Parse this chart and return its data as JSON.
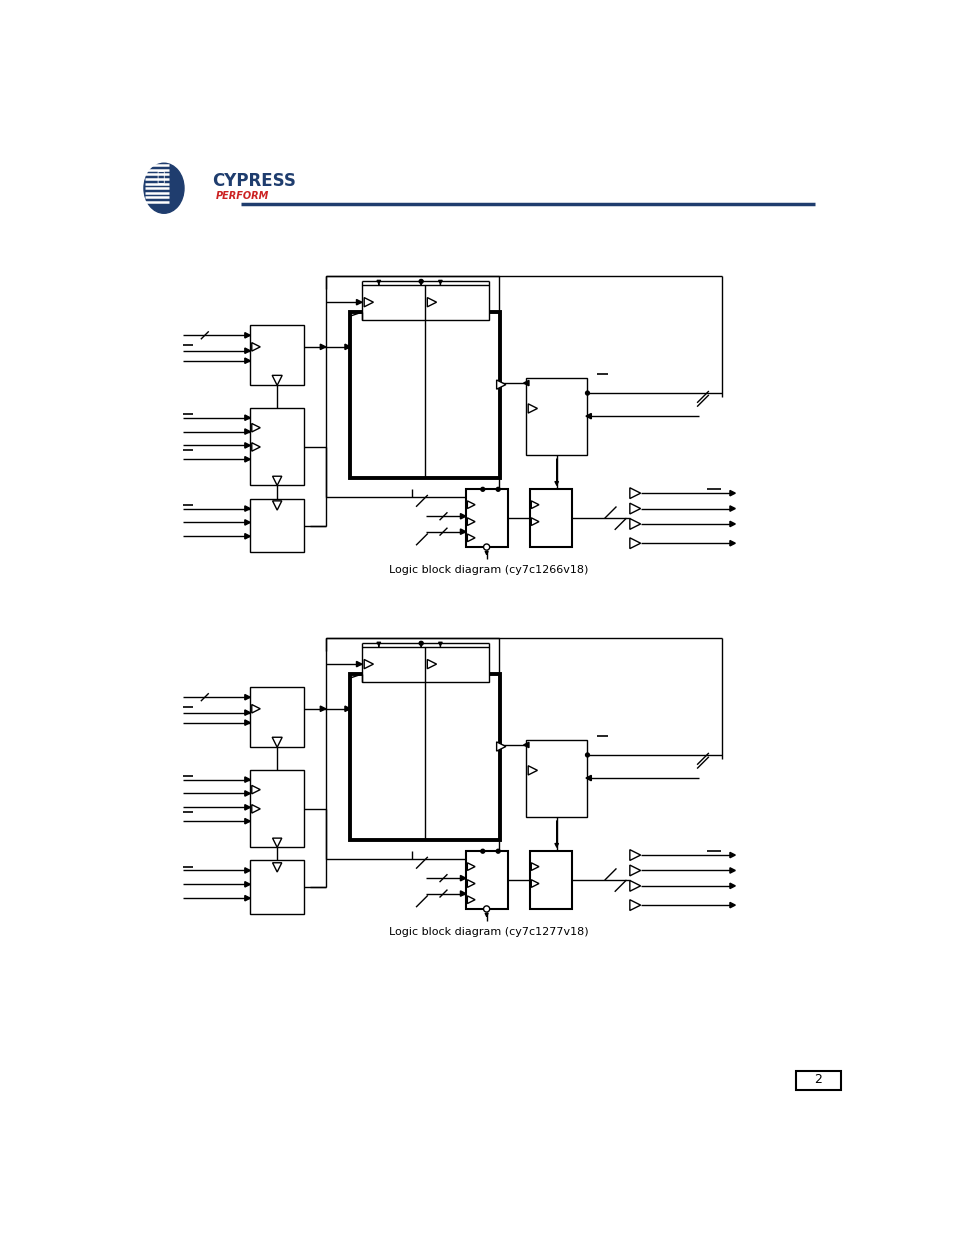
{
  "bg_color": "#ffffff",
  "line_color": "#000000",
  "header_line_color": "#1f3d6e",
  "page_num": "2",
  "diagrams": [
    {
      "yo": 148,
      "label": "Logic block diagram (cy7c1266v18)"
    },
    {
      "yo": 618,
      "label": "Logic block diagram (cy7c1277v18)"
    }
  ]
}
